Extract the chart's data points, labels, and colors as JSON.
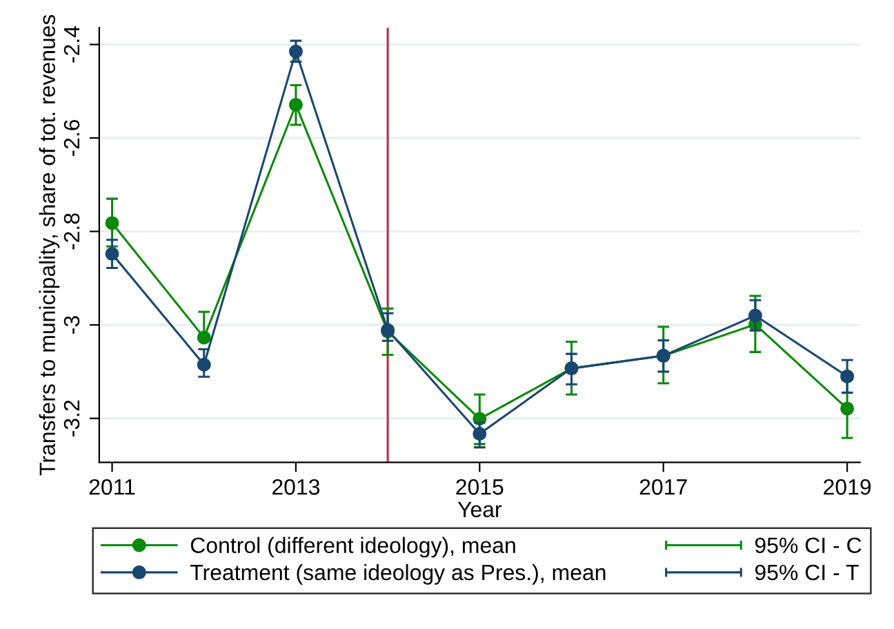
{
  "chart_data": {
    "type": "line",
    "xlabel": "Year",
    "ylabel": "Transfers to municipality, share of tot. revenues",
    "x": [
      2011,
      2012,
      2013,
      2014,
      2015,
      2016,
      2017,
      2018,
      2019
    ],
    "series": [
      {
        "name": "Control (different ideology), mean",
        "color": "#0a8a0a",
        "values": [
          -2.782,
          -3.027,
          -2.529,
          -3.014,
          -3.201,
          -3.093,
          -3.066,
          -2.999,
          -3.179
        ],
        "errors": [
          [
            -2.832,
            -2.73
          ],
          [
            -3.027,
            -2.972
          ],
          [
            -2.572,
            -2.487
          ],
          [
            -3.064,
            -2.965
          ],
          [
            -3.255,
            -3.149
          ],
          [
            -3.149,
            -3.036
          ],
          [
            -3.125,
            -3.004
          ],
          [
            -3.058,
            -2.938
          ],
          [
            -3.242,
            -3.117
          ]
        ]
      },
      {
        "name": "Treatment (same ideology as Pres.), mean",
        "color": "#1a476f",
        "values": [
          -2.848,
          -3.085,
          -2.415,
          -3.011,
          -3.233,
          -3.093,
          -3.066,
          -2.98,
          -3.11
        ],
        "errors": [
          [
            -2.878,
            -2.818
          ],
          [
            -3.111,
            -3.052
          ],
          [
            -2.437,
            -2.392
          ],
          [
            -3.034,
            -2.975
          ],
          [
            -3.262,
            -3.209
          ],
          [
            -3.127,
            -3.062
          ],
          [
            -3.1,
            -3.033
          ],
          [
            -3.012,
            -2.947
          ],
          [
            -3.145,
            -3.075
          ]
        ]
      }
    ],
    "annotations": [
      "95% CI - C",
      "95% CI - T"
    ],
    "xlim": [
      2010.86,
      2019.14
    ],
    "xticks": [
      2011,
      2013,
      2015,
      2017,
      2019
    ],
    "ylim": [
      -3.294,
      -2.364
    ],
    "yticks": [
      -3.2,
      -3,
      -2.8,
      -2.6,
      -2.4
    ],
    "ref_lines": [
      {
        "axis": "x",
        "value": 2014,
        "color": "#c0294b"
      }
    ],
    "grid": "y",
    "legend": "bottom",
    "marker": "circle",
    "line_style": "solid"
  }
}
